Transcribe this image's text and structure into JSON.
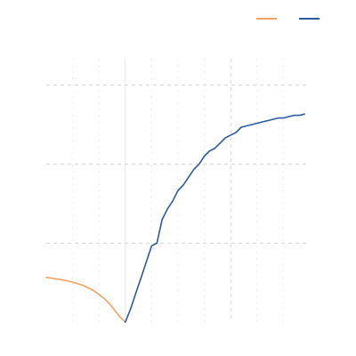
{
  "chart_data": {
    "type": "line",
    "title": "",
    "xlabel": "",
    "ylabel": "",
    "xlim": [
      -15,
      35
    ],
    "ylim": [
      0,
      1
    ],
    "grid": true,
    "legend": "top-right",
    "series": [
      {
        "color": "#f4a261",
        "x": [
          -15,
          -14,
          -12,
          -10,
          -8,
          -6,
          -5,
          -4,
          -3,
          -2,
          -1,
          0
        ],
        "y": [
          0.17,
          0.167,
          0.161,
          0.152,
          0.14,
          0.12,
          0.105,
          0.09,
          0.07,
          0.045,
          0.02,
          0.0
        ]
      },
      {
        "color": "#2c5aa0",
        "x": [
          0,
          1,
          2,
          3,
          4,
          5,
          6,
          7,
          8,
          9,
          10,
          11,
          12,
          13,
          14,
          15,
          16,
          17,
          18,
          19,
          20,
          21,
          22,
          23,
          24,
          25,
          26,
          27,
          28,
          29,
          30,
          31,
          32,
          33,
          34
        ],
        "y": [
          0.0,
          0.05,
          0.11,
          0.17,
          0.23,
          0.29,
          0.3,
          0.39,
          0.43,
          0.46,
          0.5,
          0.52,
          0.55,
          0.58,
          0.6,
          0.63,
          0.65,
          0.66,
          0.68,
          0.7,
          0.71,
          0.72,
          0.74,
          0.745,
          0.75,
          0.755,
          0.76,
          0.765,
          0.77,
          0.775,
          0.775,
          0.78,
          0.785,
          0.785,
          0.79
        ]
      }
    ]
  }
}
